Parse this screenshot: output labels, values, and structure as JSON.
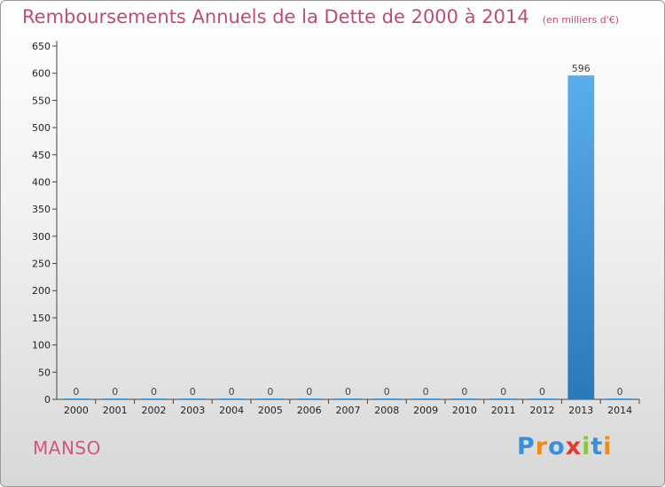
{
  "chart_data": {
    "type": "bar",
    "title": "Remboursements Annuels de la Dette de 2000 à 2014",
    "unit_note": "(en milliers d'€)",
    "categories": [
      "2000",
      "2001",
      "2002",
      "2003",
      "2004",
      "2005",
      "2006",
      "2007",
      "2008",
      "2009",
      "2010",
      "2011",
      "2012",
      "2013",
      "2014"
    ],
    "values": [
      0,
      0,
      0,
      0,
      0,
      0,
      0,
      0,
      0,
      0,
      0,
      0,
      0,
      596,
      0
    ],
    "data_labels": [
      "0",
      "0",
      "0",
      "0",
      "0",
      "0",
      "0",
      "0",
      "0",
      "0",
      "0",
      "0",
      "0",
      "596",
      "0"
    ],
    "yticks": [
      "0",
      "50",
      "100",
      "150",
      "200",
      "250",
      "300",
      "350",
      "400",
      "450",
      "500",
      "550",
      "600",
      "650"
    ],
    "ylim": [
      0,
      650
    ],
    "xlabel": "",
    "ylabel": "",
    "grid": false,
    "legend": "none",
    "colors": {
      "bar_top": "#5aaeea",
      "bar_bottom": "#2a78b8",
      "axis": "#444444",
      "title": "#c04a7a"
    }
  },
  "commune": "MANSO",
  "brand": {
    "name": "Proxiti",
    "letters": [
      {
        "char": "P",
        "color": "#3a8fd8"
      },
      {
        "char": "r",
        "color": "#f08a1c"
      },
      {
        "char": "o",
        "color": "#3a8fd8"
      },
      {
        "char": "x",
        "color": "#e23a2e"
      },
      {
        "char": "i",
        "color": "#8cc63e"
      },
      {
        "char": "t",
        "color": "#3a8fd8"
      },
      {
        "char": "i",
        "color": "#f08a1c"
      }
    ]
  }
}
